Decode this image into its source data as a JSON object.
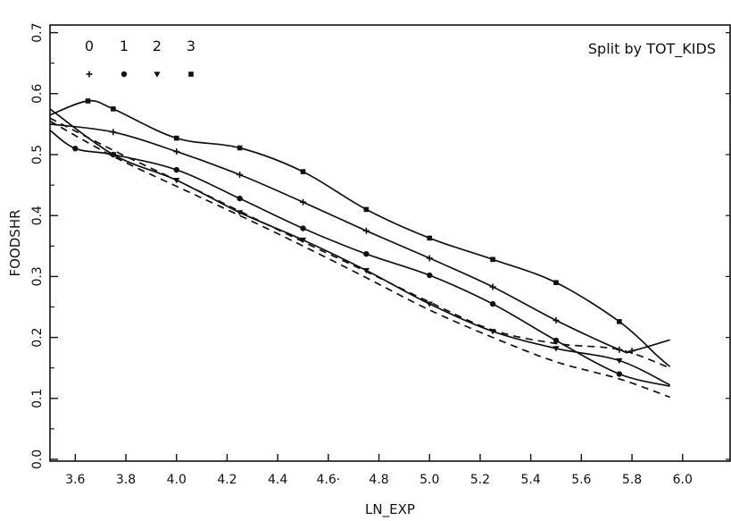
{
  "chart_data": {
    "type": "line",
    "title": "",
    "xlabel": "LN_EXP",
    "ylabel": "FOODSHR",
    "xlim": [
      3.5,
      6.02
    ],
    "ylim": [
      0.0,
      0.7
    ],
    "x_ticks": [
      3.6,
      3.8,
      4.0,
      4.2,
      4.4,
      4.6,
      4.8,
      5.0,
      5.2,
      5.4,
      5.6,
      5.8,
      6.0
    ],
    "x_tick_labels": [
      "3.6",
      "3.8",
      "4.0",
      "4.2",
      "4.4",
      "4.6·",
      "4.8",
      "5.0",
      "5.2",
      "5.4",
      "5.6",
      "5.8",
      "6.0"
    ],
    "y_ticks": [
      0.0,
      0.1,
      0.2,
      0.3,
      0.4,
      0.5,
      0.6,
      0.7
    ],
    "y_tick_labels": [
      "0.0",
      "0.1",
      "0.2",
      "0.3",
      "0.4",
      "0.5",
      "0.6",
      "0.7"
    ],
    "grid": false,
    "legend": {
      "title": "Split by TOT_KIDS",
      "placement": "top",
      "entries": [
        {
          "label": "0",
          "marker": "plus"
        },
        {
          "label": "1",
          "marker": "circle"
        },
        {
          "label": "2",
          "marker": "triangle"
        },
        {
          "label": "3",
          "marker": "square"
        }
      ]
    },
    "series": [
      {
        "marker": "square",
        "style": "solid",
        "points": [
          [
            3.5,
            0.565
          ],
          [
            3.65,
            0.588
          ],
          [
            3.75,
            0.575
          ],
          [
            4.0,
            0.527
          ],
          [
            4.25,
            0.511
          ],
          [
            4.5,
            0.472
          ],
          [
            4.75,
            0.41
          ],
          [
            5.0,
            0.363
          ],
          [
            5.25,
            0.328
          ],
          [
            5.5,
            0.29
          ],
          [
            5.75,
            0.226
          ],
          [
            5.9,
            0.17
          ],
          [
            5.95,
            0.152
          ]
        ]
      },
      {
        "marker": "plus",
        "style": "solid",
        "points": [
          [
            3.5,
            0.55
          ],
          [
            3.75,
            0.537
          ],
          [
            4.0,
            0.505
          ],
          [
            4.25,
            0.467
          ],
          [
            4.5,
            0.422
          ],
          [
            4.75,
            0.375
          ],
          [
            5.0,
            0.33
          ],
          [
            5.25,
            0.283
          ],
          [
            5.5,
            0.228
          ],
          [
            5.75,
            0.18
          ],
          [
            5.8,
            0.178
          ],
          [
            5.95,
            0.196
          ]
        ]
      },
      {
        "marker": "circle",
        "style": "solid",
        "points": [
          [
            3.5,
            0.54
          ],
          [
            3.6,
            0.51
          ],
          [
            3.75,
            0.5
          ],
          [
            4.0,
            0.475
          ],
          [
            4.25,
            0.428
          ],
          [
            4.5,
            0.379
          ],
          [
            4.75,
            0.337
          ],
          [
            5.0,
            0.302
          ],
          [
            5.25,
            0.255
          ],
          [
            5.5,
            0.195
          ],
          [
            5.75,
            0.14
          ],
          [
            5.95,
            0.12
          ]
        ]
      },
      {
        "marker": "triangle",
        "style": "solid",
        "points": [
          [
            3.5,
            0.575
          ],
          [
            3.75,
            0.5
          ],
          [
            4.0,
            0.458
          ],
          [
            4.25,
            0.405
          ],
          [
            4.5,
            0.36
          ],
          [
            4.75,
            0.31
          ],
          [
            5.0,
            0.255
          ],
          [
            5.25,
            0.21
          ],
          [
            5.5,
            0.182
          ],
          [
            5.75,
            0.162
          ],
          [
            5.95,
            0.122
          ]
        ]
      },
      {
        "marker": "none",
        "style": "dashed",
        "points": [
          [
            3.5,
            0.56
          ],
          [
            3.75,
            0.507
          ],
          [
            4.0,
            0.458
          ],
          [
            4.25,
            0.407
          ],
          [
            4.5,
            0.357
          ],
          [
            4.75,
            0.308
          ],
          [
            5.0,
            0.258
          ],
          [
            5.25,
            0.212
          ],
          [
            5.5,
            0.19
          ],
          [
            5.75,
            0.18
          ],
          [
            5.95,
            0.15
          ]
        ]
      },
      {
        "marker": "none",
        "style": "dashed",
        "points": [
          [
            3.5,
            0.555
          ],
          [
            3.75,
            0.497
          ],
          [
            4.0,
            0.448
          ],
          [
            4.25,
            0.4
          ],
          [
            4.5,
            0.35
          ],
          [
            4.75,
            0.298
          ],
          [
            5.0,
            0.245
          ],
          [
            5.25,
            0.2
          ],
          [
            5.5,
            0.16
          ],
          [
            5.75,
            0.132
          ],
          [
            5.95,
            0.102
          ]
        ]
      }
    ]
  }
}
